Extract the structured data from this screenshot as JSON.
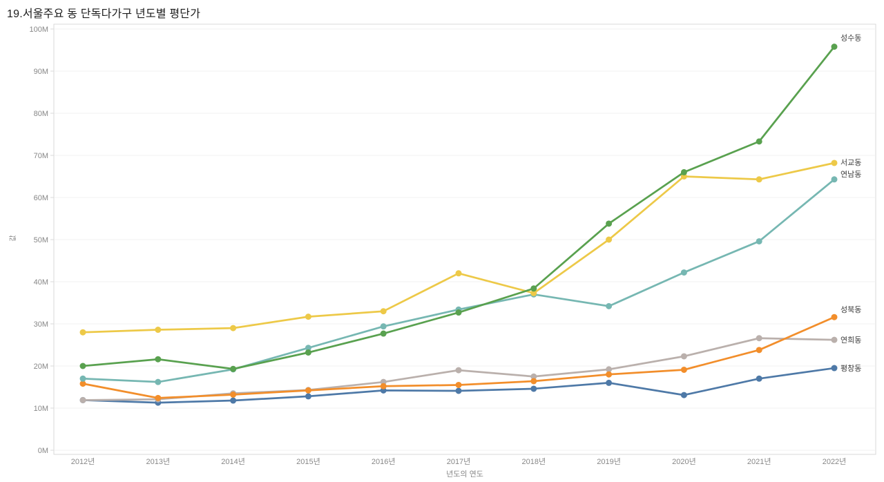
{
  "chart_data": {
    "type": "line",
    "title": "19.서울주요 동 단독다가구 년도별 평단가",
    "xlabel": "년도의 연도",
    "ylabel": "값",
    "x": [
      "2012년",
      "2013년",
      "2014년",
      "2015년",
      "2016년",
      "2017년",
      "2018년",
      "2019년",
      "2020년",
      "2021년",
      "2022년"
    ],
    "ylim": [
      0,
      100
    ],
    "value_unit": "M",
    "yticks": [
      "0M",
      "10M",
      "20M",
      "30M",
      "40M",
      "50M",
      "60M",
      "70M",
      "80M",
      "90M",
      "100M"
    ],
    "grid": "horizontal",
    "legend_position": "end-of-line-labels",
    "series": [
      {
        "name": "성수동",
        "color": "#59A14F",
        "label_dy": -9,
        "values": [
          20.0,
          21.6,
          19.3,
          23.2,
          27.7,
          32.7,
          38.4,
          53.8,
          66.0,
          73.3,
          95.8
        ]
      },
      {
        "name": "서교동",
        "color": "#EDC948",
        "label_dy": 3,
        "values": [
          28.0,
          28.6,
          29.0,
          31.7,
          33.0,
          42.0,
          37.3,
          50.0,
          65.0,
          64.3,
          68.2
        ]
      },
      {
        "name": "연남동",
        "color": "#76B7B2",
        "label_dy": -4,
        "values": [
          17.0,
          16.2,
          19.2,
          24.3,
          29.4,
          33.4,
          37.0,
          34.2,
          42.2,
          49.6,
          64.3
        ]
      },
      {
        "name": "성북동",
        "color": "#F28E2B",
        "label_dy": -7,
        "values": [
          15.8,
          12.4,
          13.2,
          14.2,
          15.2,
          15.5,
          16.4,
          18.0,
          19.1,
          23.8,
          31.6
        ]
      },
      {
        "name": "연희동",
        "color": "#BAB0AC",
        "label_dy": 4,
        "values": [
          11.9,
          12.1,
          13.5,
          14.3,
          16.2,
          19.0,
          17.5,
          19.2,
          22.3,
          26.6,
          26.2
        ]
      },
      {
        "name": "평창동",
        "color": "#4E79A7",
        "label_dy": 4,
        "values": [
          11.9,
          11.3,
          11.8,
          12.8,
          14.2,
          14.1,
          14.6,
          16.0,
          13.1,
          17.0,
          19.5
        ]
      }
    ]
  }
}
